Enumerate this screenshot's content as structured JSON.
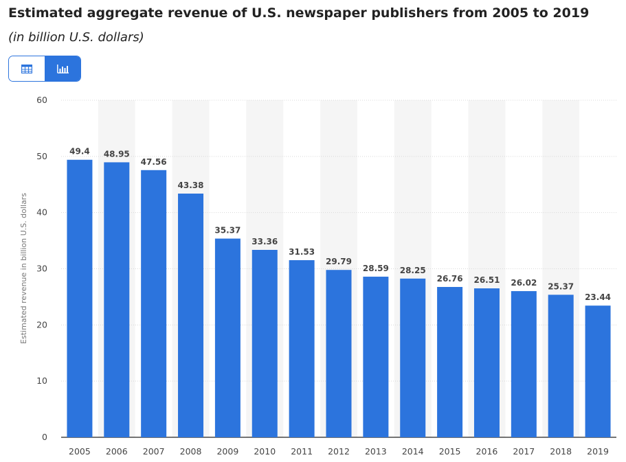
{
  "title": "Estimated aggregate revenue of U.S. newspaper publishers from 2005 to 2019",
  "subtitle": "(in billion U.S. dollars)",
  "view_toggle": {
    "table_icon": "table-icon",
    "chart_icon": "bar-chart-icon",
    "active": "chart"
  },
  "colors": {
    "bar": "#2c74dd",
    "accent": "#2c74dd",
    "band": "#f5f5f5",
    "grid": "#d8d8d8"
  },
  "chart_data": {
    "type": "bar",
    "title": "Estimated aggregate revenue of U.S. newspaper publishers from 2005 to 2019",
    "subtitle": "(in billion U.S. dollars)",
    "xlabel": "",
    "ylabel": "Estimated revenue in billion U.S. dollars",
    "categories": [
      "2005",
      "2006",
      "2007",
      "2008",
      "2009",
      "2010",
      "2011",
      "2012",
      "2013",
      "2014",
      "2015",
      "2016",
      "2017",
      "2018",
      "2019"
    ],
    "values": [
      49.4,
      48.95,
      47.56,
      43.38,
      35.37,
      33.36,
      31.53,
      29.79,
      28.59,
      28.25,
      26.76,
      26.51,
      26.02,
      25.37,
      23.44
    ],
    "value_labels": [
      "49.4",
      "48.95",
      "47.56",
      "43.38",
      "35.37",
      "33.36",
      "31.53",
      "29.79",
      "28.59",
      "28.25",
      "26.76",
      "26.51",
      "26.02",
      "25.37",
      "23.44"
    ],
    "ylim": [
      0,
      60
    ],
    "yticks": [
      0,
      10,
      20,
      30,
      40,
      50,
      60
    ],
    "grid": true,
    "legend": "none"
  }
}
